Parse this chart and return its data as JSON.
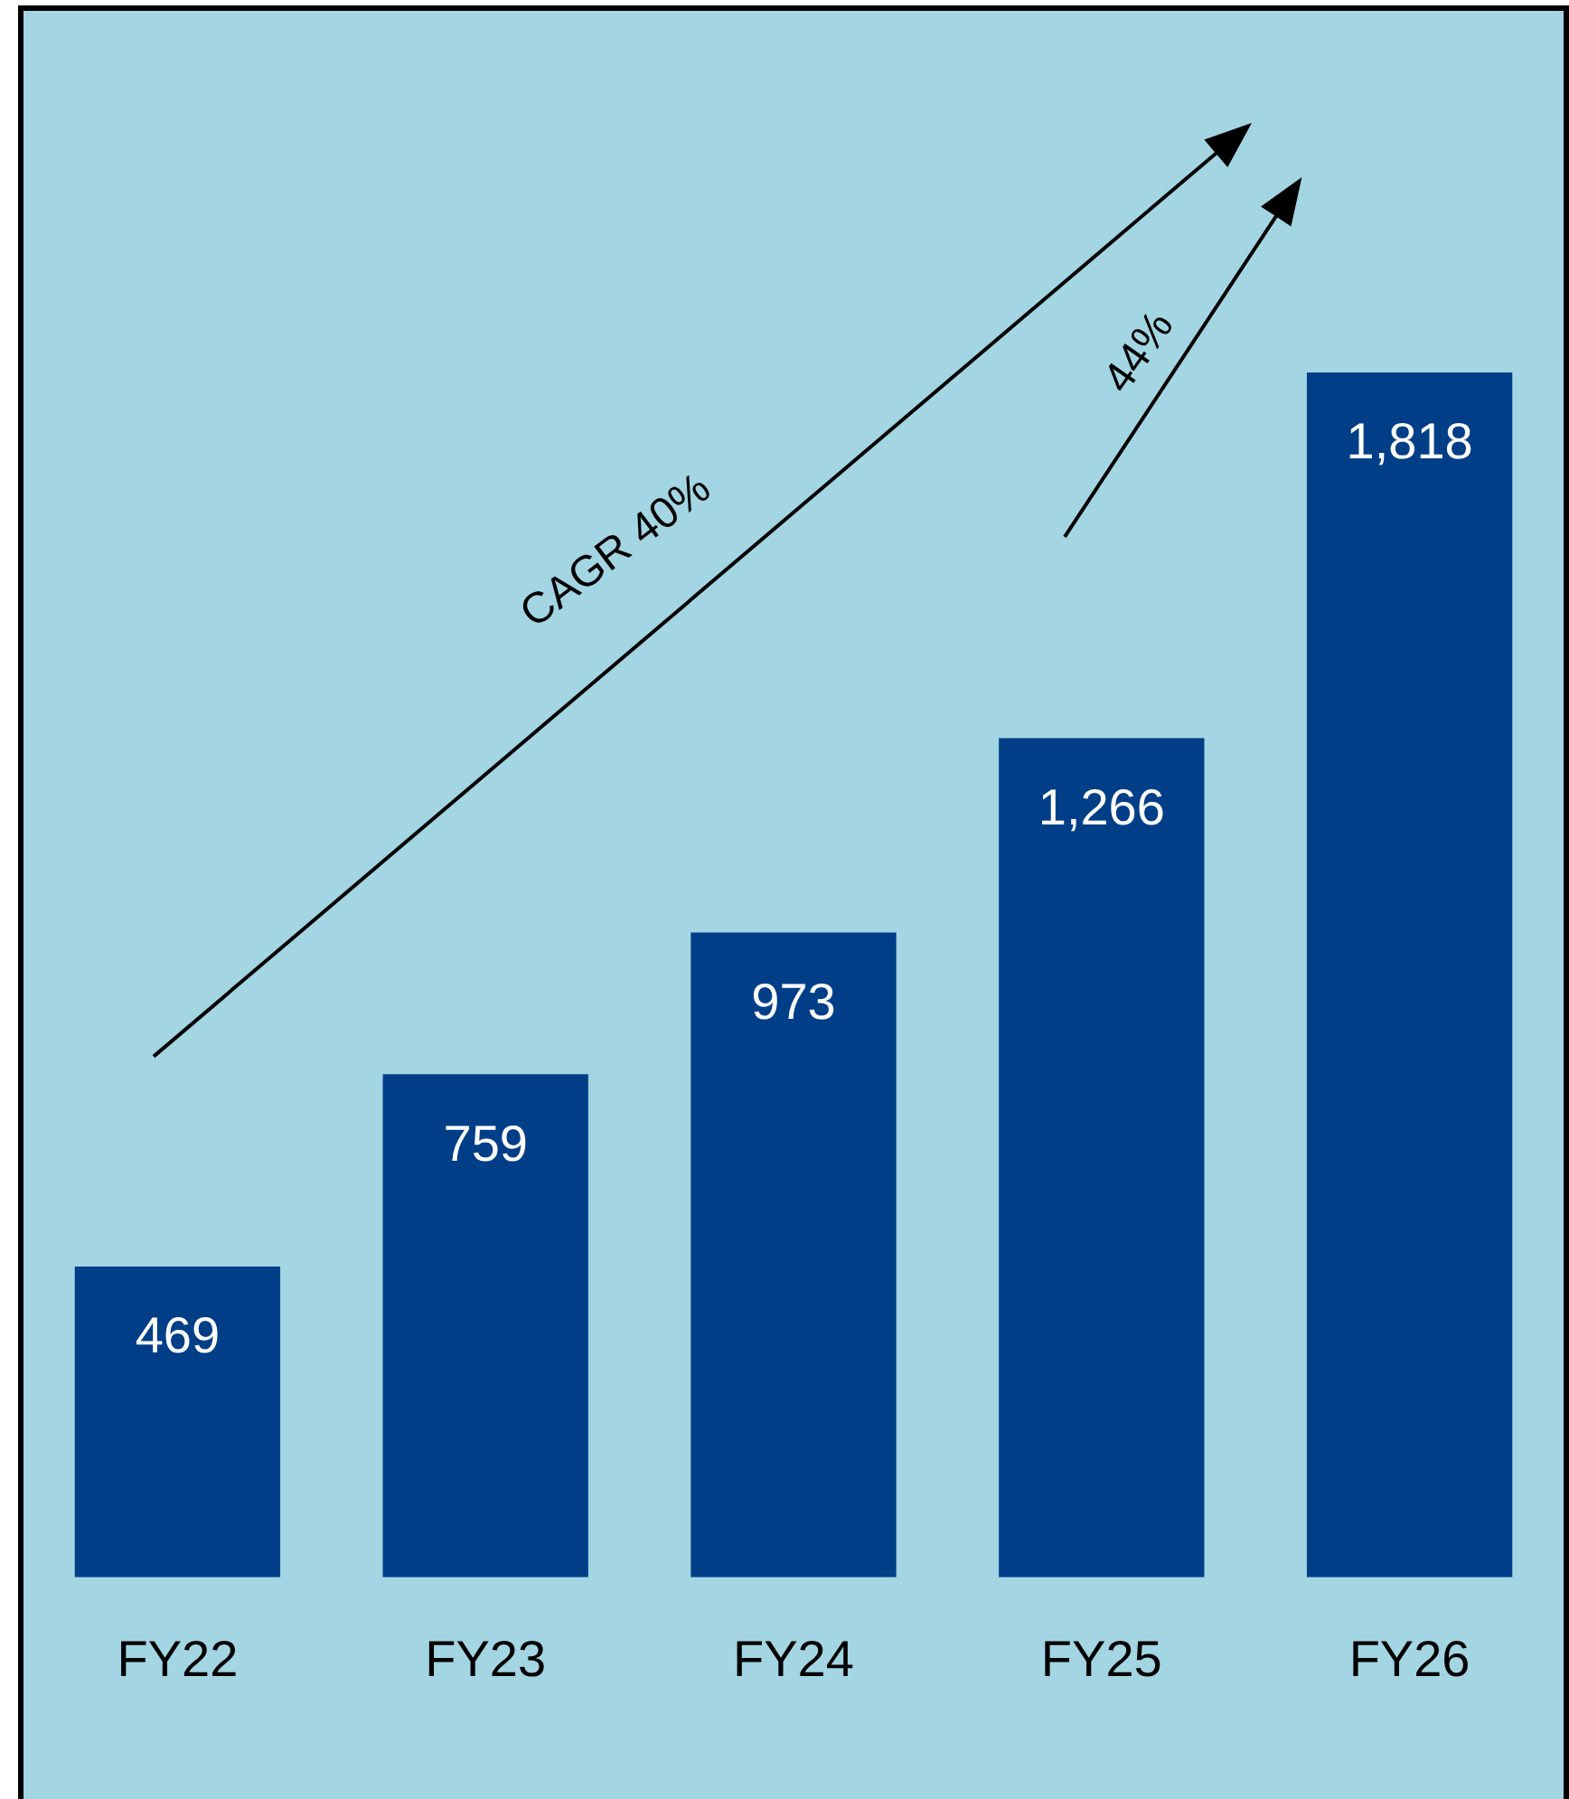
{
  "chart_data": {
    "type": "bar",
    "categories": [
      "FY22",
      "FY23",
      "FY24",
      "FY25",
      "FY26"
    ],
    "values": [
      469,
      759,
      973,
      1266,
      1818
    ],
    "color": "#003f87",
    "tick_labels": "x",
    "value_labels": [
      "469",
      "759",
      "973",
      "1,266",
      "1,818"
    ],
    "annotations": [
      "CAGR 40%",
      "44%"
    ]
  }
}
